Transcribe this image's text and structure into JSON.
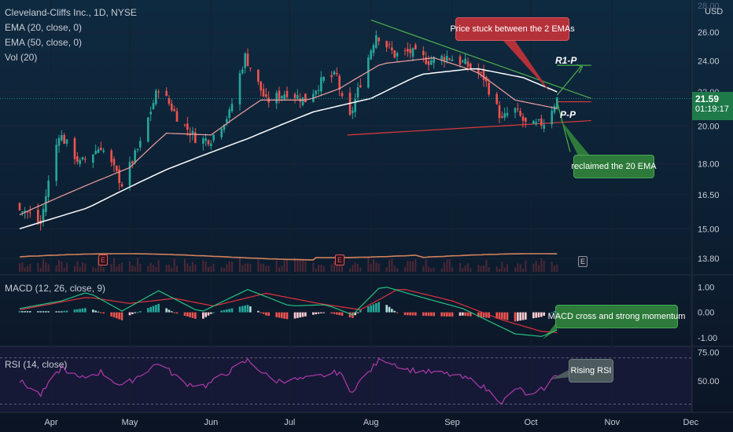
{
  "header": {
    "title": "Cleveland-Cliffs Inc., 1D, NYSE",
    "ema20": "EMA (20, close, 0)",
    "ema50": "EMA (50, close, 0)",
    "vol": "Vol (20)",
    "currency": "USD"
  },
  "price_tag": {
    "price": "21.59",
    "countdown": "01:19:17"
  },
  "macd_label": "MACD (12, 26, close, 9)",
  "rsi_label": "RSI (14, close)",
  "annotations": {
    "stuck": "Price stuck between the 2 EMAs",
    "reclaimed": "reclaimed the 20 EMA",
    "macd": "MACD cross and strong momentum",
    "rsi": "Rising RSI",
    "r1p": "R1-P",
    "pp": "P-P"
  },
  "earnings": [
    "E",
    "E",
    "E"
  ],
  "colors": {
    "up": "#26a69a",
    "down": "#ef5350",
    "ema20": "#f0a0a0",
    "ema50": "#ffffff",
    "macd": "#26c281",
    "signal": "#e0323e",
    "rsi": "#b03aa8",
    "trend_green": "#4caf50",
    "trend_red": "#e03a3a",
    "volume_ma": "#d4825a"
  },
  "chart_data": {
    "type": "candlestick",
    "x_axis_labels": [
      "Apr",
      "May",
      "Jun",
      "Jul",
      "Aug",
      "Sep",
      "Oct",
      "Nov",
      "Dec"
    ],
    "price_axis": {
      "scale": "log",
      "ticks": [
        "26.00",
        "24.00",
        "22.00",
        "20.00",
        "18.00",
        "16.50",
        "15.00",
        "13.80"
      ],
      "tick_values": [
        26.0,
        24.0,
        22.0,
        20.0,
        18.0,
        16.5,
        15.0,
        13.8
      ],
      "top_clipped_ticks": [
        "28.00",
        "22.00"
      ],
      "range": [
        13.3,
        28.2
      ]
    },
    "price_waypoints": [
      {
        "date": "Mar 20",
        "close": 16.0
      },
      {
        "date": "Mar 28",
        "close": 15.2
      },
      {
        "date": "Apr 04",
        "close": 19.6
      },
      {
        "date": "Apr 12",
        "close": 18.0
      },
      {
        "date": "Apr 20",
        "close": 18.9
      },
      {
        "date": "Apr 28",
        "close": 17.0
      },
      {
        "date": "May 05",
        "close": 19.0
      },
      {
        "date": "May 12",
        "close": 22.3
      },
      {
        "date": "May 20",
        "close": 20.3
      },
      {
        "date": "May 27",
        "close": 19.2
      },
      {
        "date": "Jun 01",
        "close": 19.3
      },
      {
        "date": "Jun 08",
        "close": 20.7
      },
      {
        "date": "Jun 14",
        "close": 24.3
      },
      {
        "date": "Jun 22",
        "close": 21.4
      },
      {
        "date": "Jun 30",
        "close": 22.0
      },
      {
        "date": "Jul 07",
        "close": 21.5
      },
      {
        "date": "Jul 14",
        "close": 22.8
      },
      {
        "date": "Jul 19",
        "close": 23.0
      },
      {
        "date": "Jul 23",
        "close": 19.9
      },
      {
        "date": "Jul 28",
        "close": 22.6
      },
      {
        "date": "Aug 03",
        "close": 25.9
      },
      {
        "date": "Aug 10",
        "close": 24.4
      },
      {
        "date": "Aug 16",
        "close": 24.6
      },
      {
        "date": "Aug 23",
        "close": 24.0
      },
      {
        "date": "Aug 30",
        "close": 24.3
      },
      {
        "date": "Sep 06",
        "close": 23.8
      },
      {
        "date": "Sep 13",
        "close": 22.9
      },
      {
        "date": "Sep 20",
        "close": 20.3
      },
      {
        "date": "Sep 24",
        "close": 21.1
      },
      {
        "date": "Sep 30",
        "close": 19.9
      },
      {
        "date": "Oct 06",
        "close": 20.2
      },
      {
        "date": "Oct 11",
        "close": 21.59
      }
    ],
    "ema20_waypoints": [
      {
        "date": "Mar 20",
        "value": 15.6
      },
      {
        "date": "Apr 10",
        "value": 16.7
      },
      {
        "date": "May 01",
        "value": 17.8
      },
      {
        "date": "May 15",
        "value": 19.6
      },
      {
        "date": "Jun 01",
        "value": 19.5
      },
      {
        "date": "Jun 20",
        "value": 21.5
      },
      {
        "date": "Jul 08",
        "value": 21.5
      },
      {
        "date": "Jul 20",
        "value": 22.2
      },
      {
        "date": "Aug 05",
        "value": 23.8
      },
      {
        "date": "Aug 25",
        "value": 24.2
      },
      {
        "date": "Sep 10",
        "value": 23.3
      },
      {
        "date": "Sep 25",
        "value": 21.5
      },
      {
        "date": "Oct 11",
        "value": 21.0
      }
    ],
    "ema50_waypoints": [
      {
        "date": "Mar 20",
        "value": 15.0
      },
      {
        "date": "Apr 15",
        "value": 15.9
      },
      {
        "date": "May 15",
        "value": 17.7
      },
      {
        "date": "Jun 15",
        "value": 19.3
      },
      {
        "date": "Jul 10",
        "value": 20.8
      },
      {
        "date": "Aug 01",
        "value": 21.6
      },
      {
        "date": "Aug 20",
        "value": 23.1
      },
      {
        "date": "Sep 10",
        "value": 23.5
      },
      {
        "date": "Sep 28",
        "value": 22.9
      },
      {
        "date": "Oct 11",
        "value": 22.0
      }
    ],
    "trendlines": [
      {
        "name": "descending resistance",
        "from": {
          "date": "Aug 01",
          "price": 26.9
        },
        "to": {
          "date": "Oct 24",
          "price": 21.6
        }
      },
      {
        "name": "support",
        "from": {
          "date": "Jul 23",
          "price": 19.5
        },
        "to": {
          "date": "Oct 24",
          "price": 20.3
        }
      },
      {
        "name": "R1-P level",
        "from": {
          "date": "Oct 11",
          "price": 23.7
        },
        "to": {
          "date": "Oct 24",
          "price": 23.7
        }
      },
      {
        "name": "P-P level",
        "from": {
          "date": "Oct 11",
          "price": 21.4
        },
        "to": {
          "date": "Oct 24",
          "price": 21.4
        }
      }
    ],
    "macd": {
      "y_ticks": [
        "1.00",
        "0.00",
        "-1.00"
      ],
      "tick_values": [
        1.0,
        0.0,
        -1.0
      ],
      "range": [
        -1.25,
        1.35
      ],
      "macd_waypoints": [
        {
          "date": "Mar 20",
          "value": 0.15
        },
        {
          "date": "Apr 05",
          "value": 0.45
        },
        {
          "date": "Apr 15",
          "value": 0.8
        },
        {
          "date": "Apr 28",
          "value": 0.05
        },
        {
          "date": "May 12",
          "value": 0.85
        },
        {
          "date": "May 28",
          "value": 0.0
        },
        {
          "date": "Jun 15",
          "value": 0.9
        },
        {
          "date": "Jul 01",
          "value": 0.25
        },
        {
          "date": "Jul 15",
          "value": 0.3
        },
        {
          "date": "Jul 25",
          "value": -0.1
        },
        {
          "date": "Aug 05",
          "value": 1.05
        },
        {
          "date": "Aug 20",
          "value": 0.6
        },
        {
          "date": "Sep 05",
          "value": 0.15
        },
        {
          "date": "Sep 25",
          "value": -0.85
        },
        {
          "date": "Oct 05",
          "value": -0.95
        },
        {
          "date": "Oct 11",
          "value": -0.7
        }
      ],
      "signal_waypoints": [
        {
          "date": "Mar 20",
          "value": 0.1
        },
        {
          "date": "Apr 15",
          "value": 0.6
        },
        {
          "date": "May 01",
          "value": 0.35
        },
        {
          "date": "May 18",
          "value": 0.55
        },
        {
          "date": "Jun 02",
          "value": 0.25
        },
        {
          "date": "Jun 22",
          "value": 0.75
        },
        {
          "date": "Jul 12",
          "value": 0.35
        },
        {
          "date": "Jul 28",
          "value": 0.1
        },
        {
          "date": "Aug 12",
          "value": 0.95
        },
        {
          "date": "Sep 01",
          "value": 0.45
        },
        {
          "date": "Sep 20",
          "value": -0.3
        },
        {
          "date": "Oct 05",
          "value": -0.75
        },
        {
          "date": "Oct 11",
          "value": -0.8
        }
      ]
    },
    "rsi": {
      "y_ticks": [
        "75.00",
        "50.00"
      ],
      "tick_values": [
        75,
        50
      ],
      "range": [
        25,
        78
      ],
      "band": [
        30,
        70
      ],
      "waypoints": [
        {
          "date": "Mar 20",
          "value": 50
        },
        {
          "date": "Mar 28",
          "value": 38
        },
        {
          "date": "Apr 05",
          "value": 62
        },
        {
          "date": "Apr 12",
          "value": 52
        },
        {
          "date": "Apr 20",
          "value": 58
        },
        {
          "date": "Apr 28",
          "value": 45
        },
        {
          "date": "May 12",
          "value": 66
        },
        {
          "date": "May 22",
          "value": 48
        },
        {
          "date": "May 30",
          "value": 46
        },
        {
          "date": "Jun 15",
          "value": 68
        },
        {
          "date": "Jun 25",
          "value": 50
        },
        {
          "date": "Jul 08",
          "value": 52
        },
        {
          "date": "Jul 20",
          "value": 58
        },
        {
          "date": "Jul 24",
          "value": 40
        },
        {
          "date": "Aug 05",
          "value": 70
        },
        {
          "date": "Aug 15",
          "value": 60
        },
        {
          "date": "Aug 30",
          "value": 56
        },
        {
          "date": "Sep 10",
          "value": 50
        },
        {
          "date": "Sep 20",
          "value": 32
        },
        {
          "date": "Sep 26",
          "value": 44
        },
        {
          "date": "Oct 01",
          "value": 36
        },
        {
          "date": "Oct 06",
          "value": 44
        },
        {
          "date": "Oct 11",
          "value": 56
        }
      ]
    },
    "earnings_dates": [
      "Apr 22",
      "Jul 22",
      "Oct 24"
    ]
  }
}
